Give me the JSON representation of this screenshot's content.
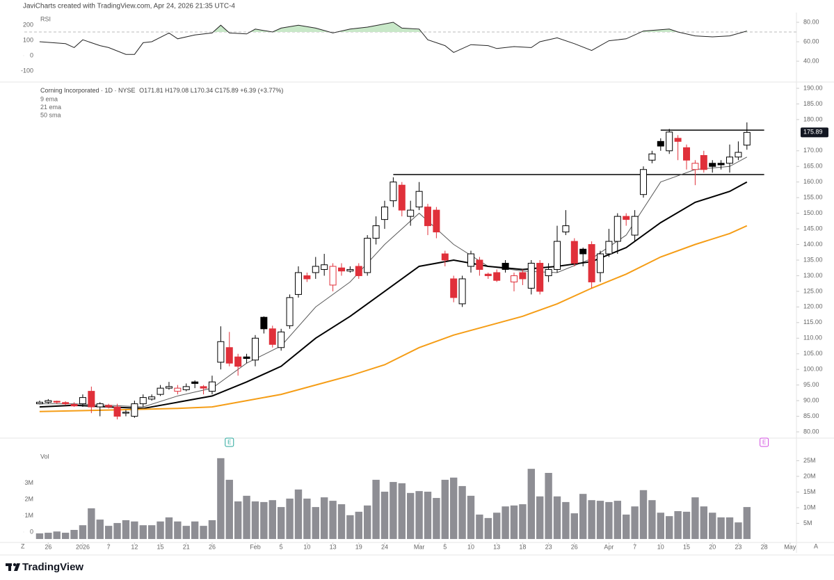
{
  "header": {
    "credit": "JaviCharts created with TradingView.com, Apr 24, 2026 21:35 UTC-4"
  },
  "footer": {
    "brand": "TradingView",
    "left_corner": "Z",
    "right_corner": "A"
  },
  "chart_data": [
    {
      "type": "candlestick",
      "title": "Corning Incorporated · 1D · NYSE",
      "ohlc_letters": [
        "O",
        "H",
        "L",
        "C"
      ],
      "change_label": "+6.39 (+3.77%)",
      "open": [
        89,
        89.5,
        89.8,
        89.4,
        88.8,
        89,
        93,
        88,
        88.5,
        88,
        86,
        85,
        89,
        90.5,
        92,
        94,
        93,
        93.5,
        96,
        94.5,
        93,
        102.3,
        107,
        104,
        104,
        103,
        116.7,
        113,
        107,
        114,
        124,
        130,
        131,
        132,
        127,
        132.5,
        131.5,
        133,
        131,
        142,
        148,
        154,
        159,
        149,
        152,
        152,
        151,
        137,
        129,
        121,
        133,
        135,
        130.5,
        131,
        134,
        128,
        131,
        126,
        134,
        130,
        132,
        144,
        141,
        138.5,
        140,
        131,
        137,
        141,
        149,
        143,
        156,
        167,
        173,
        170,
        174,
        171,
        164,
        168.5,
        166,
        166,
        166,
        168,
        171.81
      ],
      "high": [
        90,
        90.5,
        90,
        89.8,
        89.5,
        92,
        94.5,
        89.5,
        89,
        89,
        87,
        90,
        92,
        92,
        95,
        96,
        95,
        95.5,
        96.5,
        95,
        98,
        113.8,
        112,
        105,
        105,
        111,
        117,
        114,
        113,
        124,
        133,
        131,
        136,
        137,
        134,
        134,
        133,
        134,
        143,
        149,
        154,
        161.5,
        160,
        154,
        160,
        153,
        152,
        138,
        130,
        130,
        138,
        136,
        131,
        132,
        135,
        131,
        132,
        135,
        135,
        134,
        146,
        151,
        142,
        139,
        141,
        138,
        145,
        150,
        150,
        151,
        165,
        170,
        174,
        177,
        175,
        172,
        167,
        170,
        167,
        167,
        172,
        173,
        179.08
      ],
      "low": [
        88.8,
        89,
        89,
        88.5,
        88,
        88,
        86,
        85,
        87.5,
        84,
        85,
        84.5,
        88,
        90,
        91.5,
        93.5,
        92,
        93,
        94,
        92,
        92,
        100,
        101,
        98,
        102,
        101,
        111.5,
        107,
        106,
        113,
        123,
        128,
        129,
        130,
        125,
        130,
        131,
        129,
        130,
        140,
        145,
        152,
        149,
        146,
        151,
        143,
        142,
        133,
        121.5,
        120,
        131,
        130,
        129,
        128,
        131,
        125,
        127,
        124,
        124,
        128,
        131,
        143,
        133,
        133,
        126,
        128,
        136,
        137,
        146,
        141,
        155,
        166,
        170,
        169,
        167,
        164,
        159,
        163,
        163,
        164,
        163,
        167,
        170.34
      ],
      "close": [
        89.5,
        90,
        89.5,
        89,
        88.3,
        91,
        88,
        89,
        88,
        85,
        86.3,
        89,
        91,
        91.2,
        94,
        94.5,
        94,
        94.5,
        95.5,
        94,
        96,
        108.9,
        102,
        101,
        103.5,
        110,
        113,
        108,
        112,
        123,
        131,
        129,
        133,
        133.5,
        133,
        131.5,
        132,
        130,
        142,
        146,
        152,
        160,
        151,
        151,
        157,
        146,
        144,
        135,
        123,
        129,
        137,
        132,
        130,
        128.5,
        132,
        130,
        129,
        134,
        125,
        132,
        141,
        146,
        134,
        137,
        128,
        137,
        141,
        149,
        148,
        149,
        164,
        169,
        171.5,
        176,
        173,
        167,
        166,
        164,
        165,
        165.5,
        168,
        169.5,
        175.89
      ],
      "up_color": "#000000",
      "down_color": "#e0303a",
      "xlim": [
        -1.77,
        87.74
      ],
      "ylim": [
        78,
        192
      ],
      "yticks": [
        {
          "value": 80,
          "label": "80.00"
        },
        {
          "value": 85,
          "label": "85.00"
        },
        {
          "value": 90,
          "label": "90.00"
        },
        {
          "value": 95,
          "label": "95.00"
        },
        {
          "value": 100,
          "label": "100.00"
        },
        {
          "value": 105,
          "label": "105.00"
        },
        {
          "value": 110,
          "label": "110.00"
        },
        {
          "value": 115,
          "label": "115.00"
        },
        {
          "value": 120,
          "label": "120.00"
        },
        {
          "value": 125,
          "label": "125.00"
        },
        {
          "value": 130,
          "label": "130.00"
        },
        {
          "value": 135,
          "label": "135.00"
        },
        {
          "value": 140,
          "label": "140.00"
        },
        {
          "value": 145,
          "label": "145.00"
        },
        {
          "value": 150,
          "label": "150.00"
        },
        {
          "value": 155,
          "label": "155.00"
        },
        {
          "value": 160,
          "label": "160.00"
        },
        {
          "value": 165,
          "label": "165.00"
        },
        {
          "value": 170,
          "label": "170.00"
        },
        {
          "value": 180,
          "label": "180.00"
        },
        {
          "value": 185,
          "label": "185.00"
        },
        {
          "value": 190,
          "label": "190.00"
        }
      ],
      "xticks": [
        {
          "value": 1,
          "label": "26"
        },
        {
          "value": 5,
          "label": "2026"
        },
        {
          "value": 8,
          "label": "7"
        },
        {
          "value": 11,
          "label": "12"
        },
        {
          "value": 14,
          "label": "15"
        },
        {
          "value": 17,
          "label": "21"
        },
        {
          "value": 20,
          "label": "26"
        },
        {
          "value": 25,
          "label": "Feb"
        },
        {
          "value": 28,
          "label": "5"
        },
        {
          "value": 31,
          "label": "10"
        },
        {
          "value": 34,
          "label": "13"
        },
        {
          "value": 37,
          "label": "19"
        },
        {
          "value": 40,
          "label": "24"
        },
        {
          "value": 44,
          "label": "Mar"
        },
        {
          "value": 47,
          "label": "5"
        },
        {
          "value": 50,
          "label": "10"
        },
        {
          "value": 53,
          "label": "13"
        },
        {
          "value": 56,
          "label": "18"
        },
        {
          "value": 59,
          "label": "23"
        },
        {
          "value": 62,
          "label": "26"
        },
        {
          "value": 66,
          "label": "Apr"
        },
        {
          "value": 69,
          "label": "7"
        },
        {
          "value": 72,
          "label": "10"
        },
        {
          "value": 75,
          "label": "15"
        },
        {
          "value": 78,
          "label": "20"
        },
        {
          "value": 81,
          "label": "23"
        },
        {
          "value": 84,
          "label": "28"
        },
        {
          "value": 87,
          "label": "May"
        }
      ],
      "series": [
        {
          "name": "9 ema",
          "color": "#5a5a5a",
          "width": 1,
          "x": [
            0,
            4,
            8,
            12,
            16,
            20,
            24,
            28,
            32,
            36,
            40,
            44,
            48,
            52,
            56,
            60,
            64,
            68,
            72,
            76,
            80,
            82
          ],
          "values": [
            89,
            89,
            88.5,
            88,
            91.5,
            94,
            102,
            107.5,
            120,
            128,
            140,
            150,
            140,
            133,
            131.5,
            131,
            135.5,
            143,
            160,
            164,
            165,
            168
          ]
        },
        {
          "name": "21 ema",
          "color": "#000000",
          "width": 2,
          "x": [
            0,
            4,
            8,
            12,
            16,
            20,
            24,
            28,
            32,
            36,
            40,
            44,
            48,
            52,
            56,
            60,
            64,
            68,
            72,
            76,
            80,
            82
          ],
          "values": [
            88,
            88.5,
            88,
            87.5,
            89.5,
            91.5,
            96,
            101,
            110,
            117,
            125,
            133,
            135,
            133,
            132,
            133,
            134.5,
            139,
            147,
            153.5,
            157,
            160
          ]
        },
        {
          "name": "50 sma",
          "color": "#f59d16",
          "width": 2,
          "x": [
            0,
            8,
            16,
            20,
            24,
            28,
            32,
            36,
            40,
            44,
            48,
            52,
            56,
            60,
            64,
            68,
            72,
            76,
            80,
            82
          ],
          "values": [
            86.5,
            87,
            87.5,
            88,
            90,
            92,
            95,
            98,
            101.5,
            107,
            111,
            114,
            117,
            121,
            126,
            130.5,
            136,
            140,
            143.5,
            146
          ]
        }
      ],
      "levels": [
        {
          "value": 162.4,
          "from": 41,
          "to": 84
        },
        {
          "value": 176.6,
          "from": 72,
          "to": 84
        }
      ],
      "earnings": [
        {
          "x": 22,
          "label": "E",
          "color": "#26a69a"
        },
        {
          "x": 84,
          "label": "E",
          "color": "#d24ee0"
        }
      ]
    },
    {
      "type": "line",
      "title": "RSI",
      "xlim": [
        -1.77,
        87.74
      ],
      "ylim": [
        18.6,
        88.6
      ],
      "yticks": [
        {
          "value": 40,
          "label": "40.00"
        },
        {
          "value": 60,
          "label": "60.00"
        },
        {
          "value": 80,
          "label": "80.00"
        }
      ],
      "y2lim": [
        -173,
        273
      ],
      "y2ticks": [
        200,
        100,
        0,
        -100
      ],
      "levels": [
        70
      ],
      "fill_color": "#c8e8c8",
      "series": [
        {
          "color": "#222222",
          "x": [
            0,
            3,
            4,
            5,
            7,
            8,
            10,
            11,
            12,
            13,
            15,
            16,
            18,
            20,
            21,
            22,
            24,
            25,
            27,
            28,
            30,
            32,
            34,
            36,
            38,
            41,
            42,
            44,
            45,
            47,
            48,
            50,
            52,
            53,
            55,
            57,
            58,
            60,
            62,
            64,
            66,
            68,
            70,
            73,
            74,
            76,
            78,
            80,
            82
          ],
          "values": [
            60,
            58,
            54,
            62,
            56,
            54,
            47,
            47,
            59,
            60,
            69,
            63,
            67,
            69,
            77,
            69,
            68,
            73,
            70,
            74,
            77,
            74,
            69,
            73,
            75,
            80,
            74,
            73,
            62,
            56,
            49,
            57,
            56,
            53,
            55,
            54,
            60,
            64,
            58,
            51,
            61,
            63,
            71,
            73,
            70,
            66,
            65,
            66,
            71
          ]
        }
      ]
    },
    {
      "type": "bar",
      "title": "Vol",
      "color": "#8e8e94",
      "xlim": [
        -1.77,
        87.74
      ],
      "ylim": [
        -1100000,
        32200000
      ],
      "yticks": [
        {
          "value": 5000000,
          "label": "5M"
        },
        {
          "value": 10000000,
          "label": "10M"
        },
        {
          "value": 15000000,
          "label": "15M"
        },
        {
          "value": 20000000,
          "label": "20M"
        },
        {
          "value": 25000000,
          "label": "25M"
        }
      ],
      "y2lim": [
        -640000,
        5740000
      ],
      "y2ticks": [
        0,
        {
          "value": 1000000,
          "label": "1M"
        },
        {
          "value": 2000000,
          "label": "2M"
        },
        {
          "value": 3000000,
          "label": "3M"
        }
      ],
      "values": [
        1800000,
        2000000,
        2400000,
        2000000,
        2900000,
        4400000,
        9800000,
        6200000,
        4200000,
        5100000,
        6000000,
        5600000,
        4400000,
        4400000,
        5600000,
        6900000,
        5600000,
        4200000,
        5600000,
        4200000,
        6000000,
        25800000,
        18900000,
        12000000,
        13800000,
        12000000,
        11800000,
        12400000,
        10200000,
        12900000,
        15800000,
        12900000,
        10200000,
        13300000,
        12200000,
        11100000,
        7600000,
        8700000,
        10700000,
        18900000,
        15100000,
        18200000,
        17800000,
        14700000,
        15300000,
        15100000,
        13100000,
        18900000,
        19600000,
        16900000,
        13800000,
        7800000,
        6700000,
        8400000,
        10400000,
        10700000,
        11100000,
        22400000,
        13600000,
        21100000,
        13600000,
        11800000,
        8200000,
        14400000,
        12400000,
        12200000,
        11800000,
        12200000,
        7800000,
        10400000,
        15600000,
        12400000,
        8400000,
        7300000,
        8900000,
        8700000,
        13300000,
        10400000,
        8400000,
        6900000,
        6900000,
        5300000,
        10200000
      ]
    }
  ]
}
